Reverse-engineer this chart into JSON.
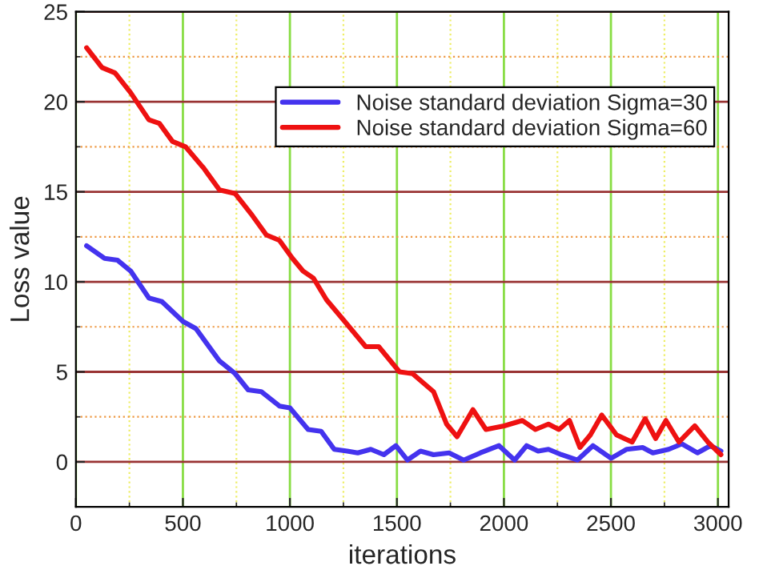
{
  "chart_data": {
    "type": "line",
    "xlabel": "iterations",
    "ylabel": "Loss value",
    "xlim": [
      0,
      3050
    ],
    "ylim": [
      -2.5,
      25
    ],
    "xticks": [
      0,
      {
        "value": 250,
        "label": null
      },
      500,
      {
        "value": 750,
        "label": null
      },
      1000,
      {
        "value": 1250,
        "label": null
      },
      1500,
      {
        "value": 1750,
        "label": null
      },
      2000,
      {
        "value": 2250,
        "label": null
      },
      2500,
      {
        "value": 2750,
        "label": null
      },
      3000
    ],
    "yticks": [
      0,
      {
        "value": 2.5,
        "label": null
      },
      5,
      {
        "value": 7.5,
        "label": null
      },
      10,
      {
        "value": 12.5,
        "label": null
      },
      15,
      {
        "value": 17.5,
        "label": null
      },
      20,
      {
        "value": 22.5,
        "label": null
      },
      25
    ],
    "grid": true,
    "legend": "top right",
    "line_style": "solid",
    "marker": "none",
    "series": [
      {
        "name": "Noise standard deviation Sigma=30",
        "color": "#4433ee",
        "x": [
          50,
          134,
          195,
          256,
          341,
          402,
          500,
          561,
          671,
          744,
          805,
          866,
          951,
          1000,
          1085,
          1146,
          1207,
          1268,
          1317,
          1378,
          1439,
          1495,
          1549,
          1610,
          1671,
          1744,
          1812,
          1890,
          1977,
          2050,
          2106,
          2160,
          2208,
          2269,
          2343,
          2416,
          2501,
          2574,
          2648,
          2696,
          2770,
          2831,
          2904,
          2965,
          3014
        ],
        "values": [
          12.0,
          11.3,
          11.2,
          10.6,
          9.1,
          8.9,
          7.8,
          7.4,
          5.6,
          4.9,
          4.0,
          3.9,
          3.1,
          3.0,
          1.8,
          1.7,
          0.7,
          0.6,
          0.5,
          0.7,
          0.4,
          0.9,
          0.1,
          0.6,
          0.4,
          0.5,
          0.1,
          0.5,
          0.9,
          0.1,
          0.9,
          0.6,
          0.7,
          0.4,
          0.1,
          0.9,
          0.2,
          0.7,
          0.8,
          0.5,
          0.7,
          1.0,
          0.5,
          0.9,
          0.6
        ]
      },
      {
        "name": "Noise standard deviation Sigma=60",
        "color": "#ee1111",
        "x": [
          50,
          122,
          183,
          256,
          341,
          390,
          451,
          512,
          598,
          671,
          744,
          817,
          890,
          951,
          1012,
          1061,
          1110,
          1171,
          1256,
          1354,
          1415,
          1512,
          1573,
          1671,
          1732,
          1781,
          1855,
          1916,
          2001,
          2086,
          2147,
          2208,
          2257,
          2306,
          2355,
          2404,
          2457,
          2526,
          2599,
          2660,
          2709,
          2757,
          2818,
          2892,
          2953,
          3014
        ],
        "values": [
          23.0,
          21.9,
          21.6,
          20.5,
          19.0,
          18.8,
          17.8,
          17.5,
          16.3,
          15.1,
          14.9,
          13.8,
          12.6,
          12.3,
          11.3,
          10.6,
          10.2,
          9.0,
          7.8,
          6.4,
          6.4,
          5.0,
          4.9,
          3.9,
          2.1,
          1.4,
          2.9,
          1.8,
          2.0,
          2.3,
          1.8,
          2.1,
          1.8,
          2.3,
          0.8,
          1.5,
          2.6,
          1.5,
          1.1,
          2.4,
          1.3,
          2.3,
          1.1,
          2.0,
          1.1,
          0.4
        ]
      }
    ]
  }
}
